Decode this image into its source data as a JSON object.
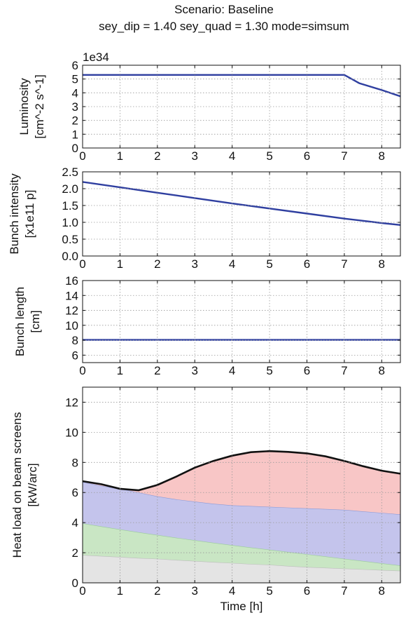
{
  "title_line1": "Scenario: Baseline",
  "title_line2": "sey_dip = 1.40 sey_quad = 1.30 mode=simsum",
  "xlabel": "Time [h]",
  "colors": {
    "line": "#2f3fa0",
    "total": "#111111",
    "red_fill": "#f8c6c6",
    "red_edge": "#e08a9a",
    "blue_fill": "#c4c4ec",
    "blue_edge": "#8a9ad8",
    "green_fill": "#c9e6c4",
    "green_edge": "#9acc9a",
    "gray_fill": "#e4e4e4",
    "gray_edge": "#bdbdbd"
  },
  "chart_data": [
    {
      "type": "line",
      "ylabel": [
        "Luminosity",
        "[cm^-2 s^-1]"
      ],
      "offset_text": "1e34",
      "xlim": [
        0,
        8.5
      ],
      "ylim": [
        0,
        6
      ],
      "xticks": [
        "0",
        "1",
        "2",
        "3",
        "4",
        "5",
        "6",
        "7",
        "8"
      ],
      "yticks": [
        "0",
        "1",
        "2",
        "3",
        "4",
        "5",
        "6"
      ],
      "grid": true,
      "series": [
        {
          "x": [
            0,
            7.0,
            7.4,
            8.0,
            8.5
          ],
          "y": [
            5.3,
            5.3,
            4.7,
            4.2,
            3.75
          ]
        }
      ]
    },
    {
      "type": "line",
      "ylabel": [
        "Bunch intensity",
        "[x1e11 p]"
      ],
      "xlim": [
        0,
        8.5
      ],
      "ylim": [
        0,
        2.5
      ],
      "xticks": [
        "0",
        "1",
        "2",
        "3",
        "4",
        "5",
        "6",
        "7",
        "8"
      ],
      "yticks": [
        "0.0",
        "0.5",
        "1.0",
        "1.5",
        "2.0",
        "2.5"
      ],
      "grid": true,
      "series": [
        {
          "x": [
            0,
            1,
            2,
            3,
            4,
            5,
            6,
            7,
            8,
            8.5
          ],
          "y": [
            2.2,
            2.04,
            1.88,
            1.72,
            1.56,
            1.41,
            1.26,
            1.11,
            0.98,
            0.92
          ]
        }
      ]
    },
    {
      "type": "line",
      "ylabel": [
        "Bunch length",
        "[cm]"
      ],
      "xlim": [
        0,
        8.5
      ],
      "ylim": [
        5,
        16
      ],
      "xticks": [
        "0",
        "1",
        "2",
        "3",
        "4",
        "5",
        "6",
        "7",
        "8"
      ],
      "yticks": [
        "6",
        "8",
        "10",
        "12",
        "14",
        "16"
      ],
      "grid": true,
      "series": [
        {
          "x": [
            0,
            8.5
          ],
          "y": [
            8.05,
            8.05
          ]
        }
      ]
    },
    {
      "type": "area",
      "ylabel": [
        "Heat load on beam screens",
        "[kW/arc]"
      ],
      "xlim": [
        0,
        8.5
      ],
      "ylim": [
        0,
        13
      ],
      "xticks": [
        "0",
        "1",
        "2",
        "3",
        "4",
        "5",
        "6",
        "7",
        "8"
      ],
      "yticks": [
        "0",
        "2",
        "4",
        "6",
        "8",
        "10",
        "12"
      ],
      "grid": true,
      "x": [
        0,
        0.5,
        1,
        1.5,
        2,
        2.5,
        3,
        3.5,
        4,
        4.5,
        5,
        5.5,
        6,
        6.5,
        7,
        7.5,
        8,
        8.5
      ],
      "stack": [
        {
          "component": "gray",
          "y": [
            1.85,
            1.78,
            1.72,
            1.65,
            1.6,
            1.52,
            1.45,
            1.38,
            1.32,
            1.25,
            1.2,
            1.12,
            1.05,
            1.0,
            0.95,
            0.9,
            0.85,
            0.8
          ]
        },
        {
          "component": "green",
          "y": [
            3.95,
            3.75,
            3.55,
            3.36,
            3.18,
            3.0,
            2.83,
            2.66,
            2.5,
            2.35,
            2.2,
            2.05,
            1.9,
            1.75,
            1.6,
            1.45,
            1.3,
            1.15
          ]
        },
        {
          "component": "blue",
          "y": [
            6.7,
            6.45,
            6.25,
            6.0,
            5.75,
            5.55,
            5.4,
            5.25,
            5.15,
            5.1,
            5.05,
            5.0,
            4.95,
            4.9,
            4.85,
            4.75,
            4.65,
            4.55
          ]
        },
        {
          "component": "red",
          "y": [
            6.75,
            6.55,
            6.25,
            6.15,
            6.5,
            7.05,
            7.65,
            8.1,
            8.45,
            8.68,
            8.75,
            8.7,
            8.6,
            8.4,
            8.1,
            7.75,
            7.45,
            7.25
          ]
        }
      ]
    }
  ]
}
